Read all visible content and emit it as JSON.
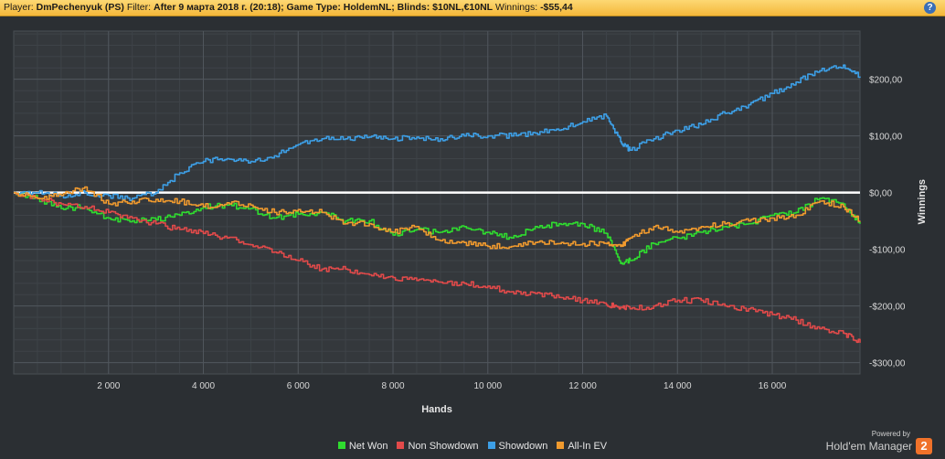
{
  "header": {
    "player_label": "Player:",
    "player_value": "DmPechenyuk (PS)",
    "filter_label": "Filter:",
    "filter_value": "After 9 марта 2018 г. (20:18); Game Type: HoldemNL; Blinds: $10NL,€10NL",
    "winnings_label": "Winnings:",
    "winnings_value": "-$55,44",
    "help_symbol": "?"
  },
  "branding": {
    "powered_by": "Powered by",
    "product": "Hold'em Manager",
    "version": "2"
  },
  "chart_data": {
    "type": "line",
    "xlabel": "Hands",
    "ylabel": "Winnings",
    "xlim": [
      0,
      17850
    ],
    "ylim": [
      -320,
      285
    ],
    "x_ticks": [
      2000,
      4000,
      6000,
      8000,
      10000,
      12000,
      14000,
      16000
    ],
    "x_tick_labels": [
      "2 000",
      "4 000",
      "6 000",
      "8 000",
      "10 000",
      "12 000",
      "14 000",
      "16 000"
    ],
    "y_ticks": [
      200,
      100,
      0,
      -100,
      -200,
      -300
    ],
    "y_tick_labels": [
      "$200,00",
      "$100,00",
      "$0,00",
      "-$100,00",
      "-$200,00",
      "-$300,00"
    ],
    "grid": true,
    "legend_position": "bottom-center",
    "x": [
      0,
      500,
      1000,
      1500,
      2000,
      2500,
      3000,
      3500,
      4000,
      4500,
      5000,
      5500,
      6000,
      6500,
      7000,
      7500,
      8000,
      8500,
      9000,
      9500,
      10000,
      10500,
      11000,
      11500,
      12000,
      12500,
      12800,
      13000,
      13500,
      14000,
      14500,
      15000,
      15500,
      16000,
      16500,
      17000,
      17500,
      17850
    ],
    "series": [
      {
        "name": "Net Won",
        "color": "#2fdc2f",
        "values": [
          0,
          -10,
          -28,
          -25,
          -45,
          -50,
          -48,
          -40,
          -25,
          -22,
          -28,
          -45,
          -38,
          -35,
          -50,
          -50,
          -75,
          -65,
          -70,
          -60,
          -70,
          -80,
          -60,
          -55,
          -55,
          -72,
          -125,
          -120,
          -90,
          -80,
          -70,
          -60,
          -55,
          -40,
          -35,
          -10,
          -20,
          -55
        ]
      },
      {
        "name": "Non Showdown",
        "color": "#e24a4a",
        "values": [
          0,
          -10,
          -20,
          -25,
          -35,
          -45,
          -55,
          -65,
          -72,
          -80,
          -92,
          -105,
          -120,
          -135,
          -135,
          -145,
          -150,
          -155,
          -158,
          -160,
          -165,
          -175,
          -178,
          -185,
          -190,
          -198,
          -202,
          -205,
          -200,
          -190,
          -190,
          -200,
          -205,
          -215,
          -225,
          -240,
          -248,
          -265
        ]
      },
      {
        "name": "Showdown",
        "color": "#3d9fe6",
        "values": [
          0,
          0,
          -5,
          0,
          -5,
          -10,
          0,
          35,
          55,
          60,
          55,
          65,
          85,
          95,
          95,
          98,
          95,
          98,
          95,
          100,
          100,
          100,
          105,
          110,
          125,
          135,
          90,
          75,
          95,
          110,
          120,
          140,
          155,
          175,
          195,
          215,
          225,
          205
        ]
      },
      {
        "name": "All-In EV",
        "color": "#f09a2e",
        "values": [
          0,
          -10,
          -5,
          10,
          -20,
          -15,
          -12,
          -15,
          -25,
          -18,
          -22,
          -35,
          -30,
          -35,
          -55,
          -55,
          -70,
          -60,
          -85,
          -88,
          -95,
          -95,
          -88,
          -90,
          -90,
          -90,
          -95,
          -80,
          -60,
          -70,
          -60,
          -55,
          -50,
          -45,
          -40,
          -15,
          -25,
          -50
        ]
      }
    ]
  }
}
